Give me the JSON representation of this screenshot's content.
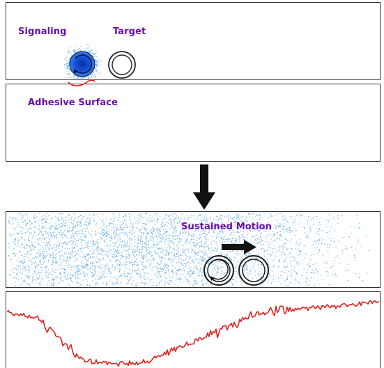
{
  "labels": {
    "signaling": "Signaling",
    "target": "Target",
    "adhesive_surface": "Adhesive Surface",
    "sustained_motion": "Sustained Motion"
  },
  "colors": {
    "label_text": "#6a0dad",
    "signaling_dot": "#1450d6",
    "signal_cloud": "#3f9be6",
    "trace_line": "#e0201c",
    "outline": "#222222",
    "arrow": "#111111"
  },
  "icons": {
    "signaling_cell": "filled-circle-with-clockwise-arrow-icon",
    "target_cell": "hollow-ring-icon",
    "transition_arrow": "down-arrow-icon",
    "motion_arrow": "right-arrow-icon",
    "rotating_cell_left": "clockwise-ring-icon",
    "rotating_cell_right": "ring-icon"
  },
  "signal_trace": {
    "shape": "high-dip-rise",
    "note_visible": false
  }
}
